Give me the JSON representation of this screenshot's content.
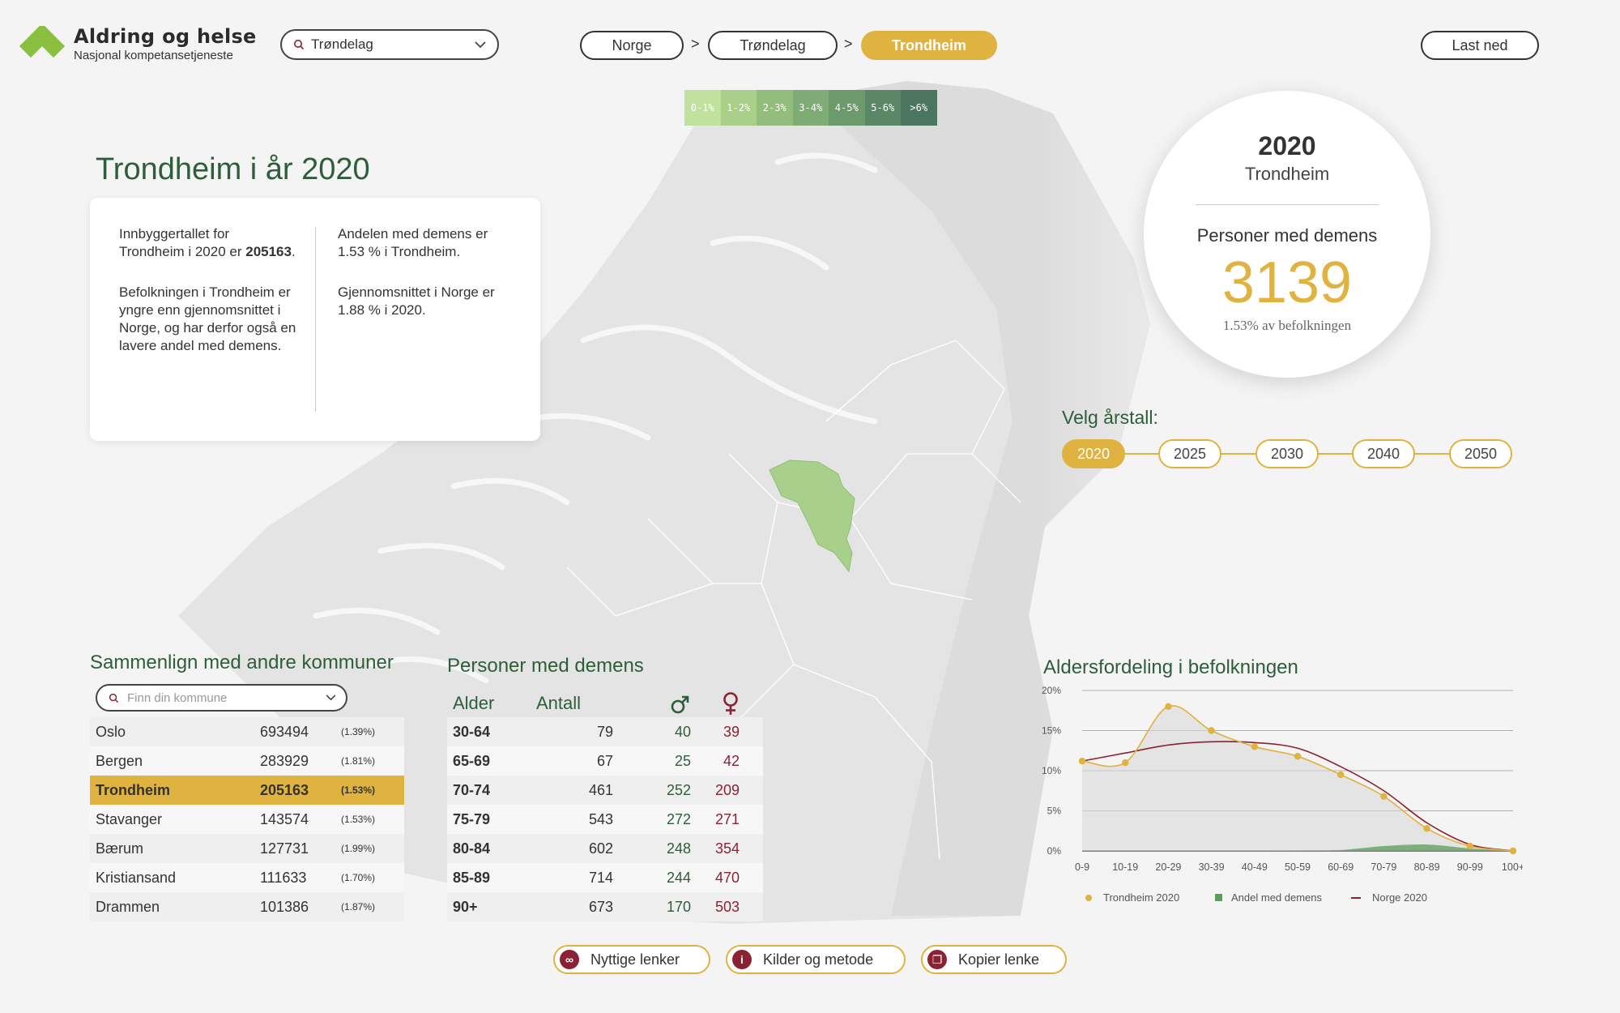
{
  "header": {
    "logo_title": "Aldring og helse",
    "logo_subtitle": "Nasjonal kompetansetjeneste",
    "region_select": "Trøndelag",
    "breadcrumb": [
      "Norge",
      "Trøndelag",
      "Trondheim"
    ],
    "breadcrumb_sep": ">",
    "download_label": "Last ned"
  },
  "legend": {
    "labels": [
      "0-1%",
      "1-2%",
      "2-3%",
      "3-4%",
      "4-5%",
      "5-6%",
      ">6%"
    ],
    "colors": [
      "#c1e29d",
      "#a9cf88",
      "#93bd7c",
      "#7fac74",
      "#6c9a6c",
      "#5a8866",
      "#4a7660"
    ]
  },
  "summary": {
    "title": "Trondheim i år 2020",
    "col1_p1_pre": "Innbyggertallet for Trondheim i 2020 er ",
    "col1_p1_num": "205163",
    "col1_p1_post": ".",
    "col1_p2": "Befolkningen i Trondheim er yngre enn gjennomsnittet i Norge, og har derfor også en lavere andel med demens.",
    "col2_p1": "Andelen med demens er 1.53 % i Trondheim.",
    "col2_p2": "Gjennomsnittet i Norge er 1.88 % i 2020."
  },
  "highlight": {
    "year": "2020",
    "municipality": "Trondheim",
    "label": "Personer med demens",
    "count": "3139",
    "share": "1.53% av befolkningen"
  },
  "year_selector": {
    "label": "Velg årstall:",
    "years": [
      "2020",
      "2025",
      "2030",
      "2040",
      "2050"
    ],
    "selected": "2020"
  },
  "compare": {
    "title": "Sammenlign med andre kommuner",
    "search_placeholder": "Finn din kommune",
    "rows": [
      {
        "name": "Oslo",
        "pop": "693494",
        "share": "(1.39%)"
      },
      {
        "name": "Bergen",
        "pop": "283929",
        "share": "(1.81%)"
      },
      {
        "name": "Trondheim",
        "pop": "205163",
        "share": "(1.53%)"
      },
      {
        "name": "Stavanger",
        "pop": "143574",
        "share": "(1.53%)"
      },
      {
        "name": "Bærum",
        "pop": "127731",
        "share": "(1.99%)"
      },
      {
        "name": "Kristiansand",
        "pop": "111633",
        "share": "(1.70%)"
      },
      {
        "name": "Drammen",
        "pop": "101386",
        "share": "(1.87%)"
      }
    ],
    "selected": "Trondheim"
  },
  "dementia": {
    "title": "Personer med demens",
    "headers": {
      "age": "Alder",
      "count": "Antall",
      "male_icon": "male-symbol-icon",
      "female_icon": "female-symbol-icon"
    },
    "rows": [
      {
        "age": "30-64",
        "count": "79",
        "male": "40",
        "female": "39"
      },
      {
        "age": "65-69",
        "count": "67",
        "male": "25",
        "female": "42"
      },
      {
        "age": "70-74",
        "count": "461",
        "male": "252",
        "female": "209"
      },
      {
        "age": "75-79",
        "count": "543",
        "male": "272",
        "female": "271"
      },
      {
        "age": "80-84",
        "count": "602",
        "male": "248",
        "female": "354"
      },
      {
        "age": "85-89",
        "count": "714",
        "male": "244",
        "female": "470"
      },
      {
        "age": "90+",
        "count": "673",
        "male": "170",
        "female": "503"
      }
    ]
  },
  "age_chart_title": "Aldersfordeling i befolkningen",
  "chart_data": {
    "type": "line",
    "title": "Aldersfordeling i befolkningen",
    "categories": [
      "0-9",
      "10-19",
      "20-29",
      "30-39",
      "40-49",
      "50-59",
      "60-69",
      "70-79",
      "80-89",
      "90-99",
      "100+"
    ],
    "ylim": [
      0,
      20
    ],
    "yticks": [
      "0%",
      "5%",
      "10%",
      "15%",
      "20%"
    ],
    "grid": true,
    "legend_position": "bottom",
    "series": [
      {
        "name": "Trondheim 2020",
        "values": [
          11.2,
          11.0,
          18.0,
          15.0,
          13.0,
          11.8,
          9.5,
          6.8,
          2.8,
          0.6,
          0.0
        ],
        "color": "#e0b23f"
      },
      {
        "name": "Andel med demens",
        "values": [
          0.0,
          0.0,
          0.0,
          0.0,
          0.0,
          0.0,
          0.1,
          0.6,
          0.8,
          0.3,
          0.0
        ],
        "color": "#5a9e5a"
      },
      {
        "name": "Norge 2020",
        "values": [
          11.2,
          12.2,
          13.2,
          13.6,
          13.5,
          12.8,
          10.5,
          7.5,
          3.5,
          0.8,
          0.0
        ],
        "color": "#8b2233"
      }
    ]
  },
  "footer": {
    "links_label": "Nyttige lenker",
    "sources_label": "Kilder og metode",
    "copy_label": "Kopier lenke"
  },
  "colors": {
    "accent": "#e0b23f",
    "green_dark": "#2e5d3a",
    "region_highlight": "#a9d08a",
    "female": "#8b2233"
  }
}
